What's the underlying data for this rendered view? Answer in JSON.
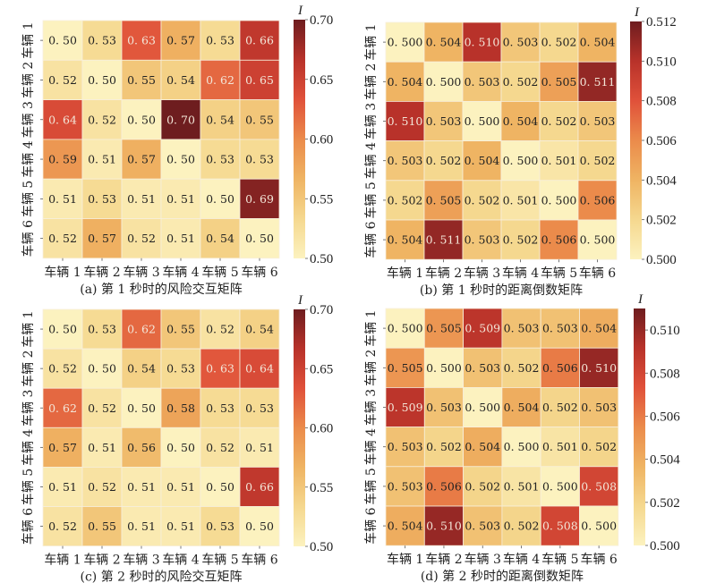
{
  "chart_data": [
    {
      "type": "heatmap",
      "id": "a",
      "title": "(a) 第 1 秒时的风险交互矩阵",
      "x_categories": [
        "车辆 1",
        "车辆 2",
        "车辆 3",
        "车辆 4",
        "车辆 5",
        "车辆 6"
      ],
      "y_categories": [
        "车辆 1",
        "车辆 2",
        "车辆 3",
        "车辆 4",
        "车辆 5",
        "车辆 6"
      ],
      "values": [
        [
          0.5,
          0.53,
          0.63,
          0.57,
          0.53,
          0.66
        ],
        [
          0.52,
          0.5,
          0.55,
          0.54,
          0.62,
          0.65
        ],
        [
          0.64,
          0.52,
          0.5,
          0.7,
          0.54,
          0.55
        ],
        [
          0.59,
          0.51,
          0.57,
          0.5,
          0.53,
          0.53
        ],
        [
          0.51,
          0.53,
          0.51,
          0.51,
          0.5,
          0.69
        ],
        [
          0.52,
          0.57,
          0.52,
          0.51,
          0.54,
          0.5
        ]
      ],
      "value_format_decimals": 2,
      "colorbar": {
        "label": "I",
        "range": [
          0.5,
          0.7
        ],
        "ticks": [
          "0.50",
          "0.55",
          "0.60",
          "0.65",
          "0.70"
        ],
        "colormap": "YlOrRd-like"
      }
    },
    {
      "type": "heatmap",
      "id": "b",
      "title": "(b) 第 1 秒时的距离倒数矩阵",
      "x_categories": [
        "车辆 1",
        "车辆 2",
        "车辆 3",
        "车辆 4",
        "车辆 5",
        "车辆 6"
      ],
      "y_categories": [
        "车辆 1",
        "车辆 2",
        "车辆 3",
        "车辆 4",
        "车辆 5",
        "车辆 6"
      ],
      "values": [
        [
          0.5,
          0.504,
          0.51,
          0.503,
          0.502,
          0.504
        ],
        [
          0.504,
          0.5,
          0.503,
          0.502,
          0.505,
          0.511
        ],
        [
          0.51,
          0.503,
          0.5,
          0.504,
          0.502,
          0.503
        ],
        [
          0.503,
          0.502,
          0.504,
          0.5,
          0.501,
          0.502
        ],
        [
          0.502,
          0.505,
          0.502,
          0.501,
          0.5,
          0.506
        ],
        [
          0.504,
          0.511,
          0.503,
          0.502,
          0.506,
          0.5
        ]
      ],
      "value_format_decimals": 3,
      "colorbar": {
        "label": "I",
        "range": [
          0.5,
          0.512
        ],
        "ticks": [
          "0.500",
          "0.502",
          "0.504",
          "0.506",
          "0.508",
          "0.510",
          "0.512"
        ],
        "colormap": "YlOrRd-like"
      }
    },
    {
      "type": "heatmap",
      "id": "c",
      "title": "(c) 第 2 秒时的风险交互矩阵",
      "x_categories": [
        "车辆 1",
        "车辆 2",
        "车辆 3",
        "车辆 4",
        "车辆 5",
        "车辆 6"
      ],
      "y_categories": [
        "车辆 1",
        "车辆 2",
        "车辆 3",
        "车辆 4",
        "车辆 5",
        "车辆 6"
      ],
      "values": [
        [
          0.5,
          0.53,
          0.62,
          0.55,
          0.52,
          0.54
        ],
        [
          0.52,
          0.5,
          0.54,
          0.53,
          0.63,
          0.64
        ],
        [
          0.62,
          0.52,
          0.5,
          0.58,
          0.53,
          0.53
        ],
        [
          0.57,
          0.51,
          0.56,
          0.5,
          0.52,
          0.51
        ],
        [
          0.51,
          0.52,
          0.51,
          0.51,
          0.5,
          0.66
        ],
        [
          0.52,
          0.55,
          0.51,
          0.51,
          0.53,
          0.5
        ]
      ],
      "value_format_decimals": 2,
      "colorbar": {
        "label": "I",
        "range": [
          0.5,
          0.7
        ],
        "ticks": [
          "0.50",
          "0.55",
          "0.60",
          "0.65",
          "0.70"
        ],
        "colormap": "YlOrRd-like"
      }
    },
    {
      "type": "heatmap",
      "id": "d",
      "title": "(d) 第 2 秒时的距离倒数矩阵",
      "x_categories": [
        "车辆 1",
        "车辆 2",
        "车辆 3",
        "车辆 4",
        "车辆 5",
        "车辆 6"
      ],
      "y_categories": [
        "车辆 1",
        "车辆 2",
        "车辆 3",
        "车辆 4",
        "车辆 5",
        "车辆 6"
      ],
      "values": [
        [
          0.5,
          0.505,
          0.509,
          0.503,
          0.503,
          0.504
        ],
        [
          0.505,
          0.5,
          0.503,
          0.502,
          0.506,
          0.51
        ],
        [
          0.509,
          0.503,
          0.5,
          0.504,
          0.502,
          0.503
        ],
        [
          0.503,
          0.502,
          0.504,
          0.5,
          0.501,
          0.502
        ],
        [
          0.503,
          0.506,
          0.502,
          0.501,
          0.5,
          0.508
        ],
        [
          0.504,
          0.51,
          0.503,
          0.502,
          0.508,
          0.5
        ]
      ],
      "value_format_decimals": 3,
      "colorbar": {
        "label": "I",
        "range": [
          0.5,
          0.511
        ],
        "ticks": [
          "0.500",
          "0.502",
          "0.504",
          "0.506",
          "0.508",
          "0.510"
        ],
        "colormap": "YlOrRd-like"
      }
    }
  ],
  "colors": {
    "colormap_stops": [
      "#fcf2bf",
      "#f5d88f",
      "#efb463",
      "#eb8b4b",
      "#e0513a",
      "#b8322a",
      "#6e1d1f"
    ],
    "text_dark": "#222222",
    "text_light": "#f3e6d8",
    "cell_border": "#f7efdc"
  }
}
